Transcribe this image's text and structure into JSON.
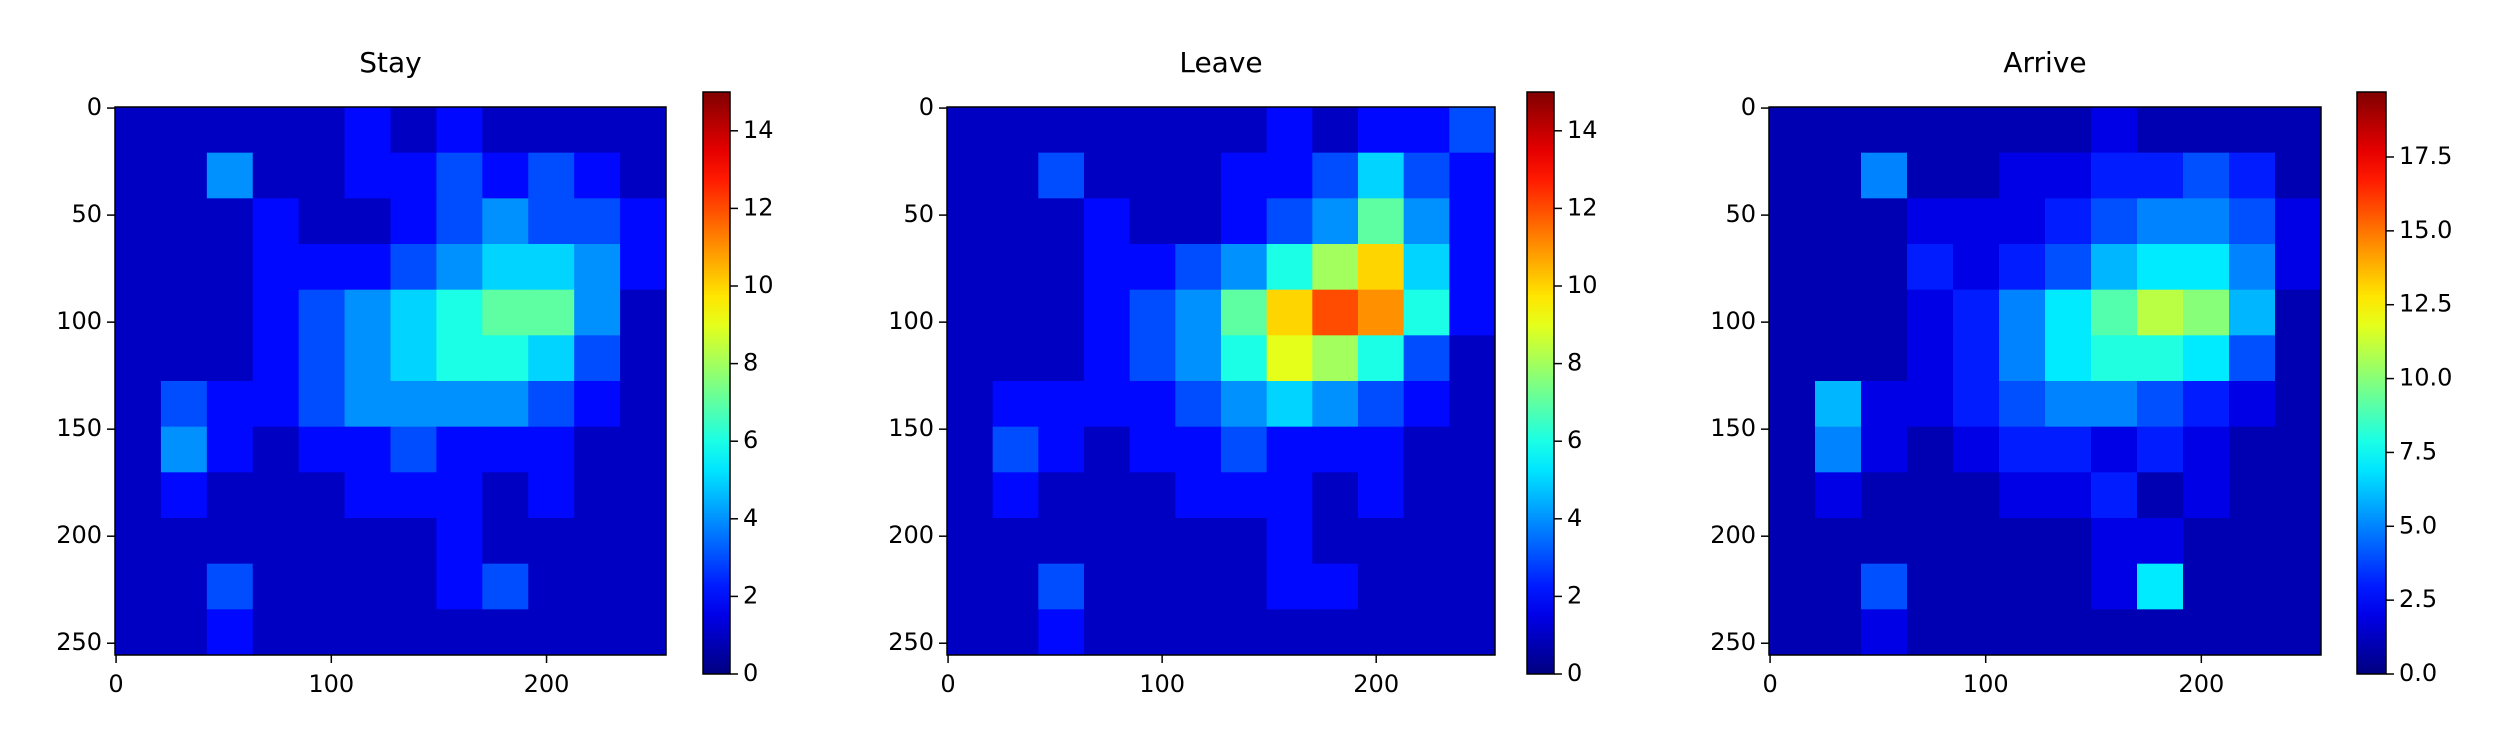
{
  "chart_data": [
    {
      "type": "heatmap",
      "title": "Stay",
      "colormap": "jet",
      "xlim": [
        -0.5,
        255.5
      ],
      "ylim": [
        255.5,
        -0.5
      ],
      "xticks": [
        0,
        100,
        200
      ],
      "yticks": [
        0,
        50,
        100,
        150,
        200,
        250
      ],
      "clim": [
        0,
        15
      ],
      "cticks": [
        0,
        2,
        4,
        6,
        8,
        10,
        12,
        14
      ],
      "z": [
        [
          1,
          1,
          1,
          1,
          1,
          2,
          1,
          2,
          1,
          1,
          1,
          1
        ],
        [
          1,
          1,
          4,
          1,
          1,
          2,
          2,
          3,
          2,
          3,
          2,
          1
        ],
        [
          1,
          1,
          1,
          2,
          1,
          1,
          2,
          3,
          4,
          3,
          3,
          2
        ],
        [
          1,
          1,
          1,
          2,
          2,
          2,
          3,
          4,
          5,
          5,
          4,
          2
        ],
        [
          1,
          1,
          1,
          2,
          3,
          4,
          5,
          6,
          7,
          7,
          4,
          1
        ],
        [
          1,
          1,
          1,
          2,
          3,
          4,
          5,
          6,
          6,
          5,
          3,
          1
        ],
        [
          1,
          3,
          2,
          2,
          3,
          4,
          4,
          4,
          4,
          3,
          2,
          1
        ],
        [
          1,
          4,
          2,
          1,
          2,
          2,
          3,
          2,
          2,
          2,
          1,
          1
        ],
        [
          1,
          2,
          1,
          1,
          1,
          2,
          2,
          2,
          1,
          2,
          1,
          1
        ],
        [
          1,
          1,
          1,
          1,
          1,
          1,
          1,
          2,
          1,
          1,
          1,
          1
        ],
        [
          1,
          1,
          3,
          1,
          1,
          1,
          1,
          2,
          3,
          1,
          1,
          1
        ],
        [
          1,
          1,
          2,
          1,
          1,
          1,
          1,
          1,
          1,
          1,
          1,
          1
        ]
      ]
    },
    {
      "type": "heatmap",
      "title": "Leave",
      "colormap": "jet",
      "xlim": [
        -0.5,
        255.5
      ],
      "ylim": [
        255.5,
        -0.5
      ],
      "xticks": [
        0,
        100,
        200
      ],
      "yticks": [
        0,
        50,
        100,
        150,
        200,
        250
      ],
      "clim": [
        0,
        15
      ],
      "cticks": [
        0,
        2,
        4,
        6,
        8,
        10,
        12,
        14
      ],
      "z": [
        [
          1,
          1,
          1,
          1,
          1,
          1,
          1,
          2,
          1,
          2,
          2,
          3
        ],
        [
          1,
          1,
          3,
          1,
          1,
          1,
          2,
          2,
          3,
          5,
          3,
          2
        ],
        [
          1,
          1,
          1,
          2,
          1,
          1,
          2,
          3,
          4,
          7,
          4,
          2
        ],
        [
          1,
          1,
          1,
          2,
          2,
          3,
          4,
          6,
          8,
          10,
          5,
          2
        ],
        [
          1,
          1,
          1,
          2,
          3,
          4,
          7,
          10,
          12,
          11,
          6,
          2
        ],
        [
          1,
          1,
          1,
          2,
          3,
          4,
          6,
          9,
          8,
          6,
          3,
          1
        ],
        [
          1,
          2,
          2,
          2,
          2,
          3,
          4,
          5,
          4,
          3,
          2,
          1
        ],
        [
          1,
          3,
          2,
          1,
          2,
          2,
          3,
          2,
          2,
          2,
          1,
          1
        ],
        [
          1,
          2,
          1,
          1,
          1,
          2,
          2,
          2,
          1,
          2,
          1,
          1
        ],
        [
          1,
          1,
          1,
          1,
          1,
          1,
          1,
          2,
          1,
          1,
          1,
          1
        ],
        [
          1,
          1,
          3,
          1,
          1,
          1,
          1,
          2,
          2,
          1,
          1,
          1
        ],
        [
          1,
          1,
          2,
          1,
          1,
          1,
          1,
          1,
          1,
          1,
          1,
          1
        ]
      ]
    },
    {
      "type": "heatmap",
      "title": "Arrive",
      "colormap": "jet",
      "xlim": [
        -0.5,
        255.5
      ],
      "ylim": [
        255.5,
        -0.5
      ],
      "xticks": [
        0,
        100,
        200
      ],
      "yticks": [
        0,
        50,
        100,
        150,
        200,
        250
      ],
      "clim": [
        0,
        19.7
      ],
      "cticks": [
        {
          "value": 0,
          "label": "0.0"
        },
        2.5,
        {
          "value": 5,
          "label": "5.0"
        },
        7.5,
        {
          "value": 10,
          "label": "10.0"
        },
        12.5,
        {
          "value": 15,
          "label": "15.0"
        },
        17.5
      ],
      "z": [
        [
          1,
          1,
          1,
          1,
          1,
          1,
          1,
          2,
          1,
          1,
          1,
          1
        ],
        [
          1,
          1,
          5,
          1,
          1,
          2,
          2,
          3,
          3,
          4,
          3,
          1
        ],
        [
          1,
          1,
          1,
          2,
          2,
          2,
          3,
          4,
          5,
          5,
          4,
          2
        ],
        [
          1,
          1,
          1,
          3,
          2,
          3,
          4,
          6,
          7,
          7,
          5,
          2
        ],
        [
          1,
          1,
          1,
          2,
          3,
          5,
          7,
          9,
          11,
          10,
          6,
          1
        ],
        [
          1,
          1,
          1,
          2,
          3,
          5,
          7,
          8,
          8,
          7,
          4,
          1
        ],
        [
          1,
          6,
          2,
          2,
          3,
          4,
          5,
          5,
          4,
          3,
          2,
          1
        ],
        [
          1,
          5,
          2,
          1,
          2,
          3,
          3,
          2,
          3,
          2,
          1,
          1
        ],
        [
          1,
          2,
          1,
          1,
          1,
          2,
          2,
          3,
          1,
          2,
          1,
          1
        ],
        [
          1,
          1,
          1,
          1,
          1,
          1,
          1,
          2,
          2,
          1,
          1,
          1
        ],
        [
          1,
          1,
          4,
          1,
          1,
          1,
          1,
          2,
          7,
          1,
          1,
          1
        ],
        [
          1,
          1,
          2,
          1,
          1,
          1,
          1,
          1,
          1,
          1,
          1,
          1
        ]
      ]
    }
  ]
}
